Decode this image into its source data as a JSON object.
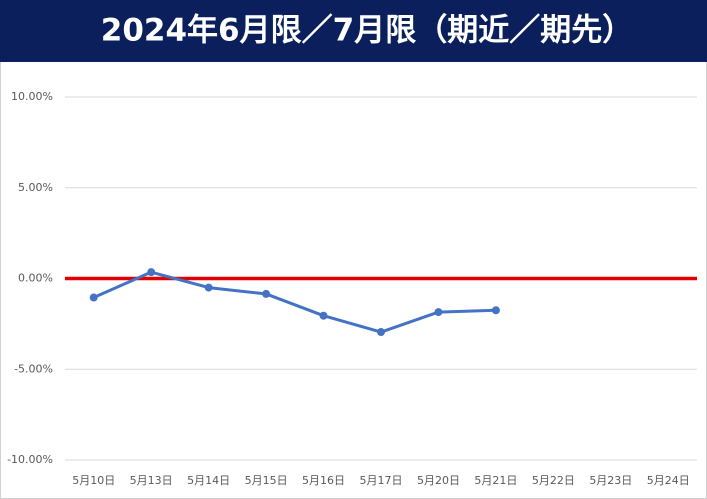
{
  "chart_data": {
    "type": "line",
    "title": "2024年6月限／7月限（期近／期先）",
    "categories": [
      "5月10日",
      "5月13日",
      "5月14日",
      "5月15日",
      "5月16日",
      "5月17日",
      "5月20日",
      "5月21日",
      "5月22日",
      "5月23日",
      "5月24日"
    ],
    "series": [
      {
        "color": "#4472c4",
        "values": [
          -1.05,
          0.35,
          -0.5,
          -0.85,
          -2.05,
          -2.95,
          -1.85,
          -1.75,
          null,
          null,
          null
        ]
      }
    ],
    "ylim": [
      -10,
      10
    ],
    "yticks": [
      {
        "value": -10,
        "label": "-10.00%"
      },
      {
        "value": -5,
        "label": "-5.00%"
      },
      {
        "value": 0,
        "label": "0.00%"
      },
      {
        "value": 5,
        "label": "5.00%"
      },
      {
        "value": 10,
        "label": "10.00%"
      }
    ],
    "grid": true,
    "reference_line": {
      "value": 0,
      "color": "#e00000"
    }
  }
}
